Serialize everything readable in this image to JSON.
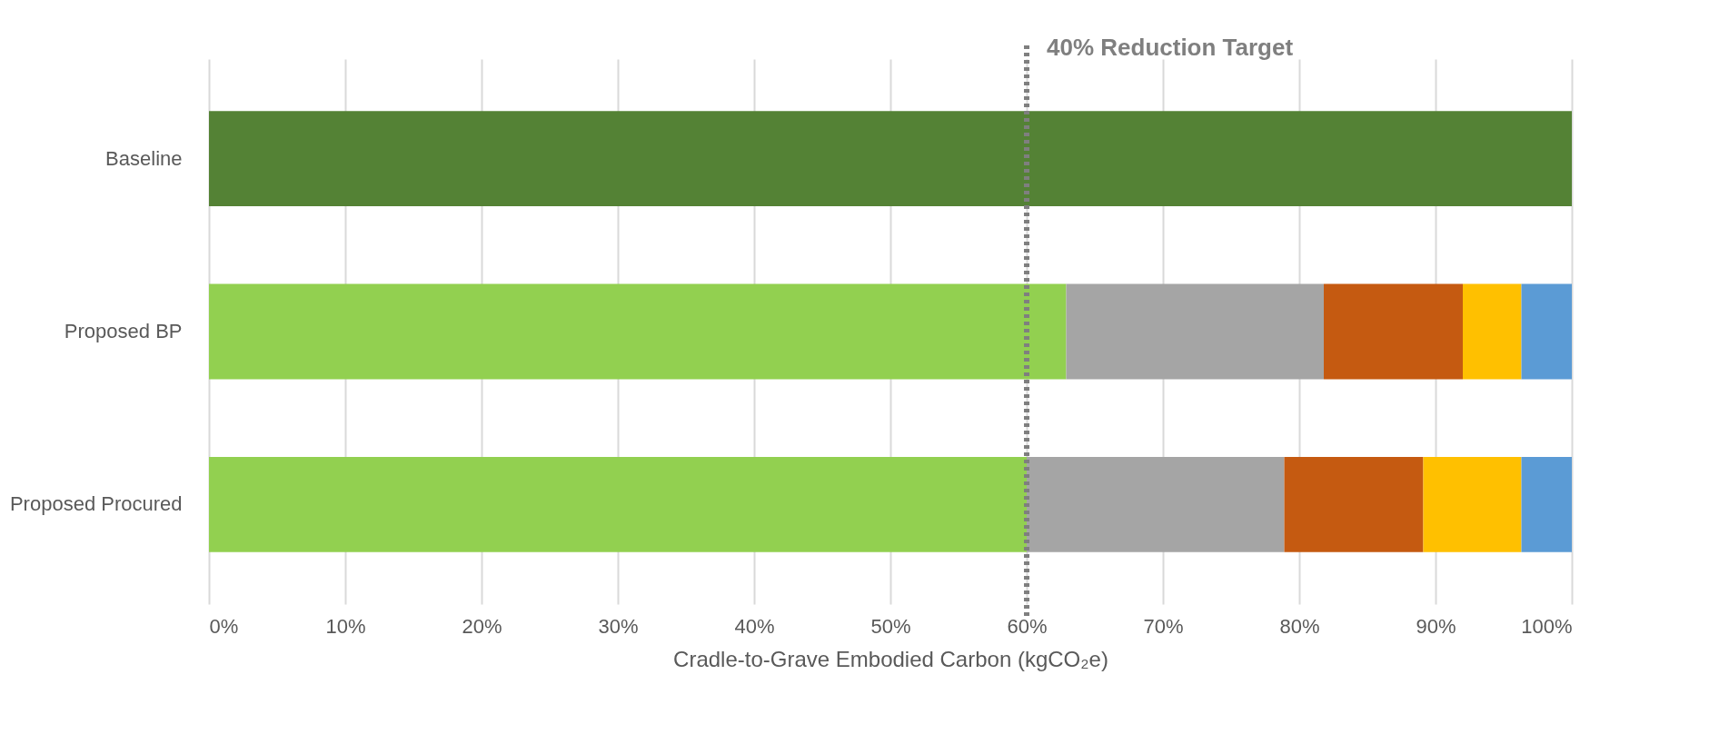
{
  "chart_data": {
    "type": "bar",
    "orientation": "horizontal",
    "stacked": true,
    "categories": [
      "Baseline",
      "Proposed BP",
      "Proposed Procured"
    ],
    "xlabel": "Cradle-to-Grave Embodied Carbon (kgCO₂e)",
    "series": [
      {
        "color": "#548235",
        "values": [
          100,
          null,
          null
        ]
      },
      {
        "color": "#92d050",
        "values": [
          null,
          62.9,
          60
        ]
      },
      {
        "color": "#a5a5a5",
        "values": [
          null,
          18.9,
          18.9
        ]
      },
      {
        "color": "#c55a11",
        "values": [
          null,
          10.2,
          10.2
        ]
      },
      {
        "color": "#ffc000",
        "values": [
          null,
          4.3,
          7.2
        ]
      },
      {
        "color": "#5b9bd5",
        "values": [
          null,
          3.7,
          3.7
        ]
      }
    ],
    "xlim": [
      0,
      100
    ],
    "xticks": [
      {
        "value": 0,
        "label": "0%"
      },
      {
        "value": 10,
        "label": "10%"
      },
      {
        "value": 20,
        "label": "20%"
      },
      {
        "value": 30,
        "label": "30%"
      },
      {
        "value": 40,
        "label": "40%"
      },
      {
        "value": 50,
        "label": "50%"
      },
      {
        "value": 60,
        "label": "60%"
      },
      {
        "value": 70,
        "label": "70%"
      },
      {
        "value": 80,
        "label": "80%"
      },
      {
        "value": 90,
        "label": "90%"
      },
      {
        "value": 100,
        "label": "100%"
      }
    ],
    "grid": "x",
    "ref_lines": [
      {
        "axis": "x",
        "value": 60,
        "label": "40% Reduction Target",
        "color": "#7f7f7f",
        "line_style": "dotted"
      }
    ]
  }
}
